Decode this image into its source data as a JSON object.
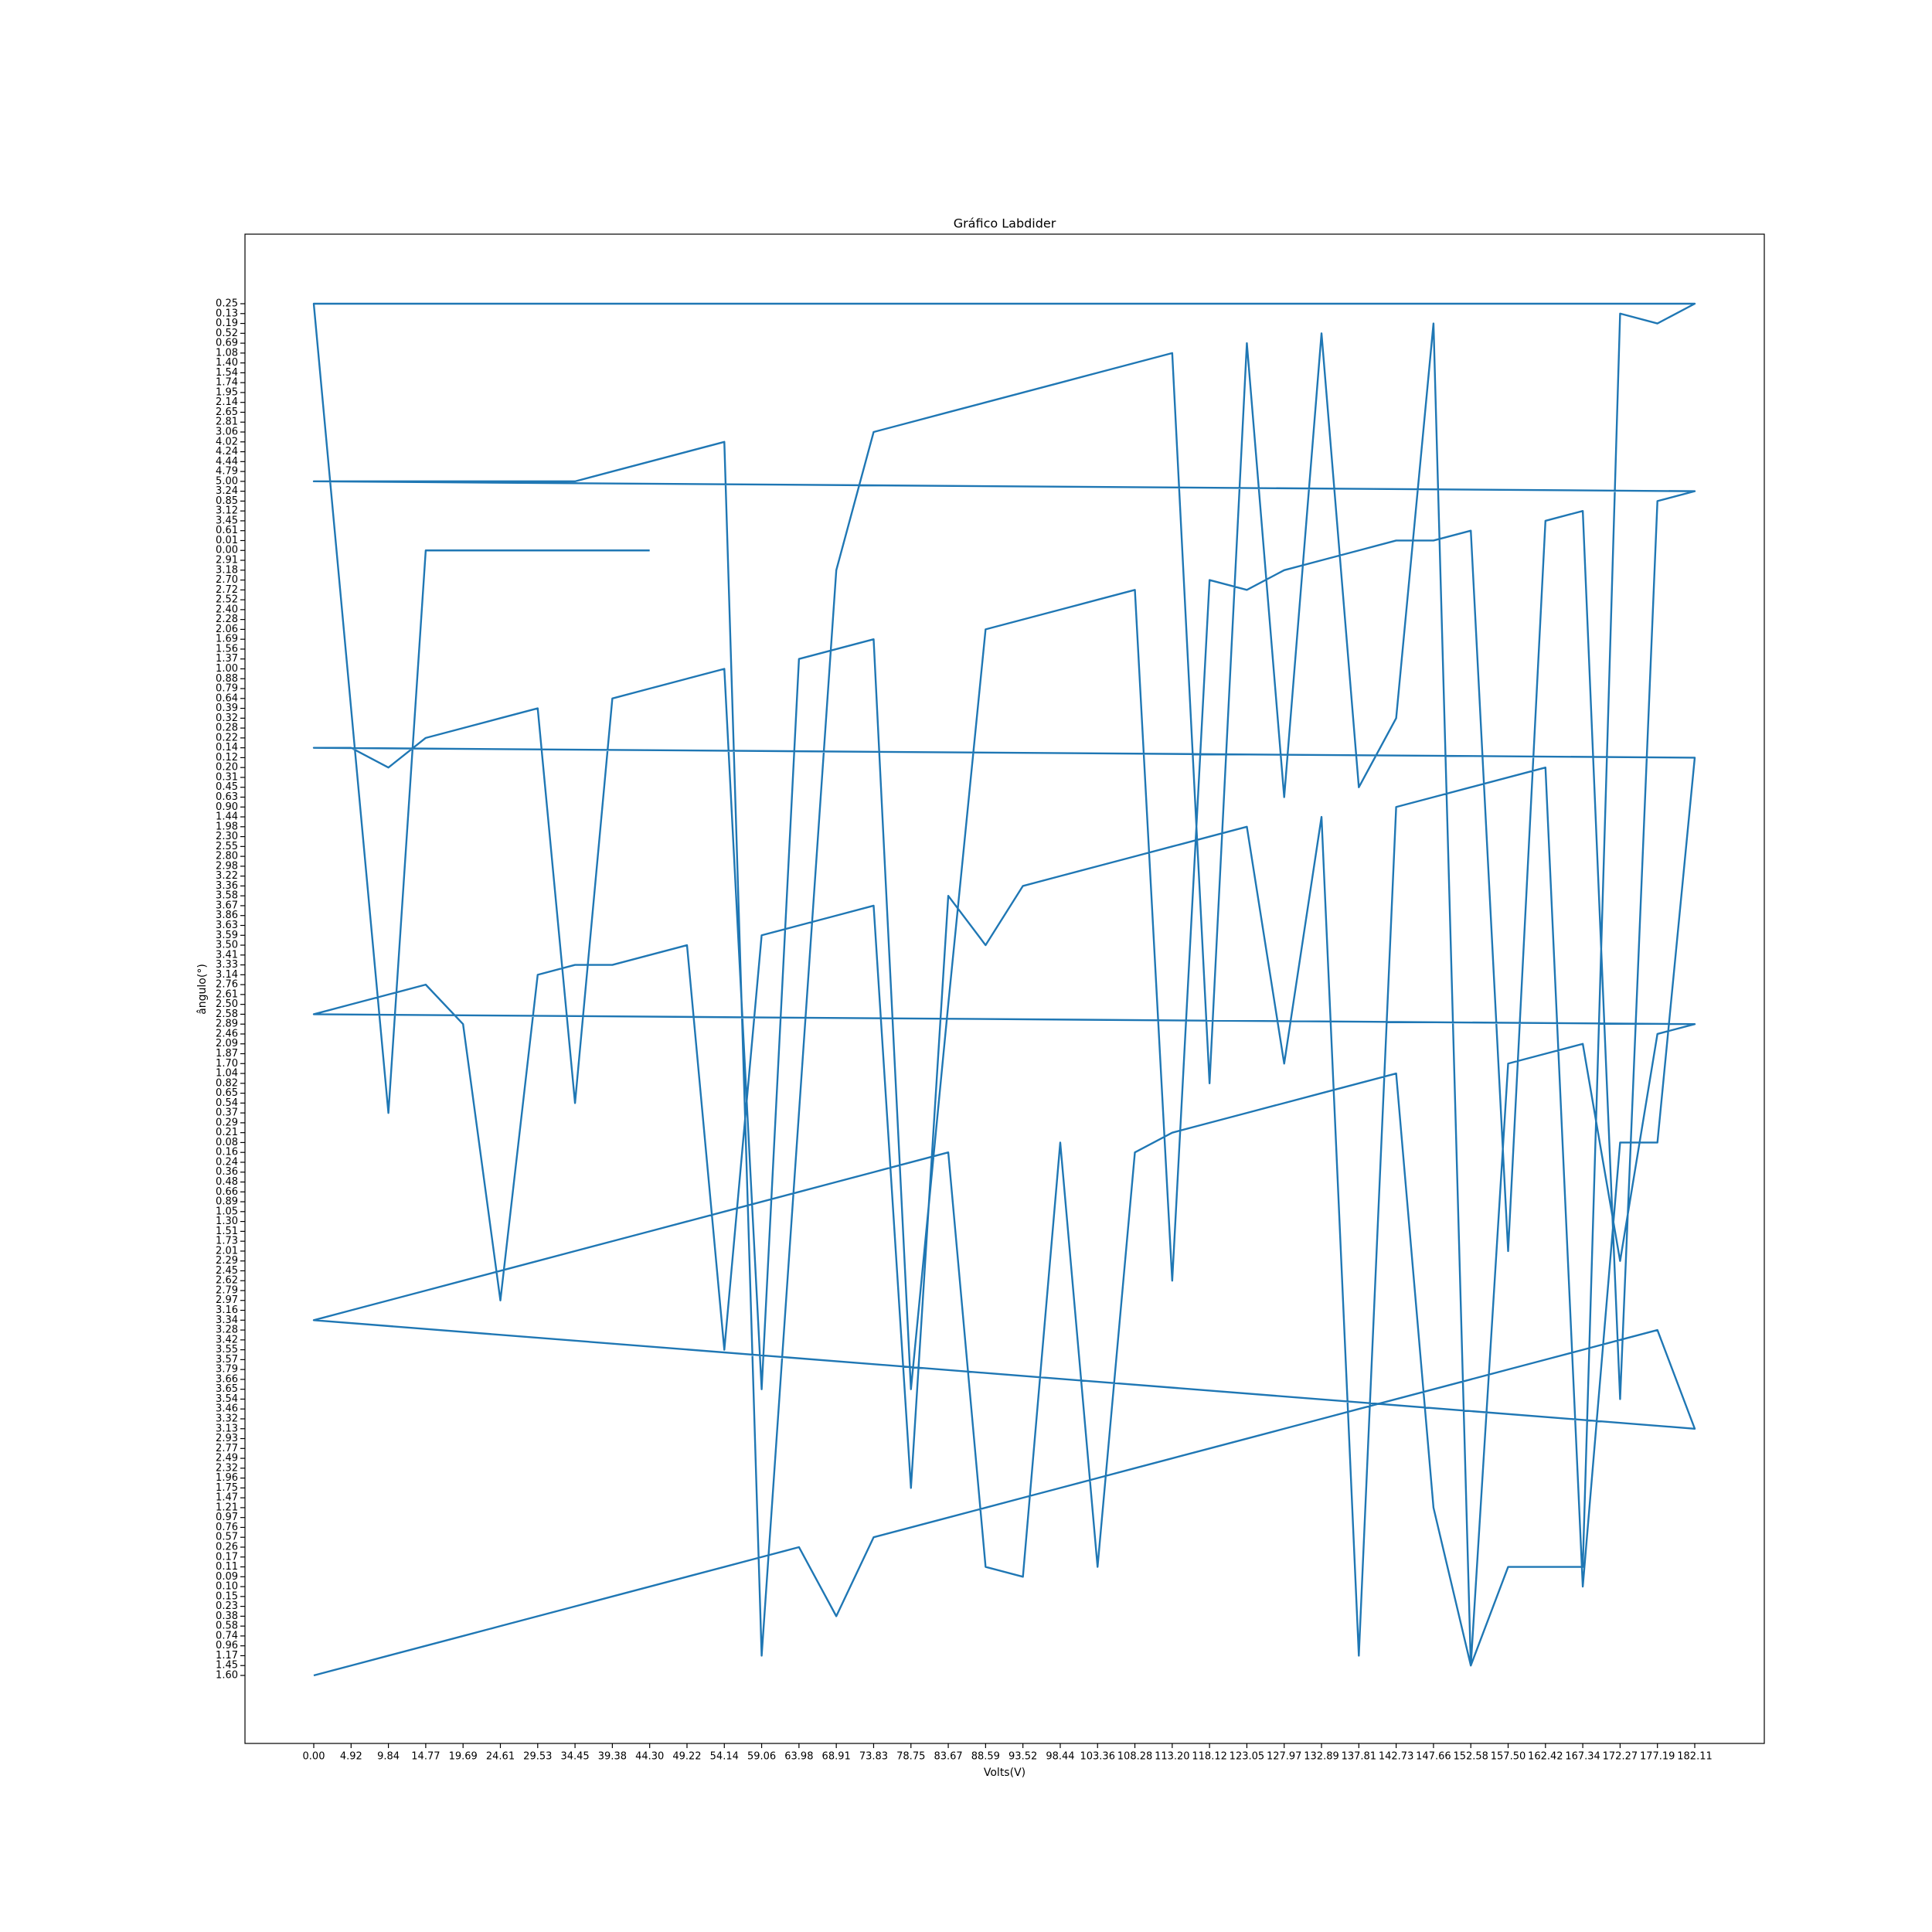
{
  "chart_data": {
    "type": "line",
    "title": "Gráfico Labdider",
    "x_label": "Volts(V)",
    "y_label": "ângulo(°)",
    "categories": [
      "0.00",
      "4.92",
      "9.84",
      "14.77",
      "19.69",
      "24.61",
      "29.53",
      "34.45",
      "39.38",
      "44.30",
      "49.22",
      "54.14",
      "59.06",
      "63.98",
      "68.91",
      "73.83",
      "78.75",
      "83.67",
      "88.59",
      "93.52",
      "98.44",
      "103.36",
      "108.28",
      "113.20",
      "118.12",
      "123.05",
      "127.97",
      "132.89",
      "137.81",
      "142.73",
      "147.66",
      "152.58",
      "157.50",
      "162.42",
      "167.34",
      "172.27",
      "177.19",
      "182.11"
    ],
    "y_categories": [
      "1.60",
      "1.45",
      "1.17",
      "0.96",
      "0.74",
      "0.58",
      "0.38",
      "0.23",
      "0.15",
      "0.10",
      "0.09",
      "0.11",
      "0.17",
      "0.26",
      "0.57",
      "0.76",
      "0.97",
      "1.21",
      "1.47",
      "1.75",
      "1.96",
      "2.32",
      "2.49",
      "2.77",
      "2.93",
      "3.13",
      "3.32",
      "3.46",
      "3.54",
      "3.65",
      "3.66",
      "3.79",
      "3.57",
      "3.55",
      "3.42",
      "3.28",
      "3.34",
      "3.16",
      "2.97",
      "2.79",
      "2.62",
      "2.45",
      "2.29",
      "2.01",
      "1.73",
      "1.51",
      "1.30",
      "1.05",
      "0.89",
      "0.66",
      "0.48",
      "0.36",
      "0.24",
      "0.16",
      "0.08",
      "0.21",
      "0.29",
      "0.37",
      "0.54",
      "0.65",
      "0.82",
      "1.04",
      "1.70",
      "1.87",
      "2.09",
      "2.46",
      "2.89",
      "2.58",
      "2.50",
      "2.61",
      "2.76",
      "3.14",
      "3.33",
      "3.41",
      "3.50",
      "3.59",
      "3.63",
      "3.86",
      "3.67",
      "3.58",
      "3.36",
      "3.22",
      "2.98",
      "2.80",
      "2.55",
      "2.30",
      "1.98",
      "1.44",
      "0.90",
      "0.63",
      "0.45",
      "0.31",
      "0.20",
      "0.12",
      "0.14",
      "0.22",
      "0.28",
      "0.32",
      "0.39",
      "0.64",
      "0.79",
      "0.88",
      "1.00",
      "1.37",
      "1.56",
      "1.69",
      "2.06",
      "2.28",
      "2.40",
      "2.52",
      "2.72",
      "2.70",
      "3.18",
      "2.91",
      "0.00",
      "0.01",
      "0.61",
      "3.45",
      "3.12",
      "0.85",
      "3.24",
      "5.00",
      "4.79",
      "4.44",
      "4.24",
      "4.02",
      "3.06",
      "2.81",
      "2.65",
      "2.14",
      "1.95",
      "1.74",
      "1.54",
      "1.40",
      "1.08",
      "0.69",
      "0.52",
      "0.19",
      "0.13",
      "0.25"
    ],
    "series": [
      {
        "color": "#1f77b4",
        "x": [
          0,
          4.92,
          9.84,
          14.77,
          19.69,
          24.61,
          29.53,
          34.45,
          39.38,
          44.3,
          49.22,
          54.14,
          59.06,
          63.98,
          68.91,
          73.83,
          78.75,
          83.67,
          88.59,
          93.52,
          98.44,
          103.36,
          108.28,
          113.2,
          118.12,
          123.05,
          127.97,
          132.89,
          137.81,
          142.73,
          147.66,
          152.58,
          157.5,
          162.42,
          167.34,
          172.27,
          177.19,
          182.11,
          0,
          4.92,
          9.84,
          14.77,
          19.69,
          24.61,
          29.53,
          34.45,
          39.38,
          44.3,
          49.22,
          54.14,
          59.06,
          63.98,
          68.91,
          73.83,
          78.75,
          83.67,
          88.59,
          93.52,
          98.44,
          103.36,
          108.28,
          113.2,
          118.12,
          123.05,
          127.97,
          132.89,
          137.81,
          142.73,
          147.66,
          152.58,
          157.5,
          162.42,
          167.34,
          172.27,
          177.19,
          182.11,
          0,
          4.92,
          9.84,
          14.77,
          19.69,
          24.61,
          29.53,
          34.45,
          39.38,
          44.3,
          49.22,
          54.14,
          59.06,
          63.98,
          68.91,
          73.83,
          78.75,
          83.67,
          88.59,
          93.52,
          98.44,
          103.36,
          108.28,
          113.2,
          118.12,
          123.05,
          127.97,
          132.89,
          137.81,
          142.73,
          147.66,
          152.58,
          157.5,
          162.42,
          167.34,
          172.27,
          177.19,
          182.11,
          0,
          4.92,
          9.84,
          14.77,
          19.69,
          24.61,
          29.53,
          34.45,
          39.38,
          44.3,
          49.22,
          54.14,
          59.06,
          63.98,
          68.91,
          73.83,
          78.75,
          83.67,
          88.59,
          93.52,
          98.44,
          103.36,
          108.28,
          113.2,
          118.12,
          123.05,
          127.97,
          132.89,
          137.81,
          142.73,
          147.66,
          152.58,
          157.5,
          162.42,
          167.34,
          172.27,
          177.19,
          182.11,
          0,
          4.92,
          9.84,
          14.77,
          19.69,
          24.61,
          29.53,
          34.45,
          39.38,
          44.3,
          49.22,
          54.14,
          59.06,
          63.98,
          68.91,
          73.83,
          78.75,
          83.67,
          88.59,
          93.52,
          98.44,
          103.36,
          108.28,
          113.2,
          118.12,
          123.05,
          127.97,
          132.89,
          137.81,
          142.73,
          147.66,
          152.58,
          157.5,
          162.42,
          167.34,
          172.27,
          177.19,
          182.11,
          0,
          4.92,
          9.84,
          14.77,
          19.69,
          24.61,
          29.53,
          34.45,
          39.38,
          44.3
        ],
        "values": [
          1.6,
          1.45,
          1.17,
          0.96,
          0.74,
          0.58,
          0.38,
          0.23,
          0.15,
          0.1,
          0.09,
          0.11,
          0.17,
          0.26,
          0.38,
          0.57,
          0.76,
          0.97,
          1.21,
          1.47,
          1.75,
          1.96,
          2.32,
          2.49,
          2.77,
          2.93,
          3.13,
          3.32,
          3.46,
          3.54,
          3.65,
          3.66,
          3.79,
          3.57,
          3.55,
          3.42,
          3.28,
          3.13,
          3.34,
          3.16,
          2.97,
          2.79,
          2.62,
          2.45,
          2.29,
          2.01,
          1.73,
          1.51,
          1.3,
          1.05,
          0.89,
          0.66,
          0.48,
          0.36,
          0.24,
          0.16,
          0.11,
          0.09,
          0.08,
          0.11,
          0.16,
          0.21,
          0.29,
          0.37,
          0.54,
          0.65,
          0.82,
          1.04,
          1.21,
          1.45,
          1.7,
          1.87,
          2.09,
          2.29,
          2.46,
          2.89,
          2.58,
          2.5,
          2.61,
          2.76,
          2.89,
          2.97,
          3.14,
          3.33,
          3.33,
          3.41,
          3.5,
          3.55,
          3.59,
          3.63,
          3.86,
          3.67,
          1.75,
          3.58,
          3.5,
          3.36,
          3.22,
          2.98,
          2.8,
          2.55,
          2.3,
          1.98,
          1.7,
          1.44,
          1.17,
          0.9,
          0.63,
          0.45,
          0.31,
          0.2,
          0.1,
          0.08,
          0.08,
          0.12,
          0.14,
          0.14,
          0.2,
          0.22,
          0.28,
          0.32,
          0.39,
          0.54,
          0.64,
          0.79,
          0.88,
          1,
          3.65,
          1.37,
          1.56,
          1.69,
          3.65,
          2.5,
          2.06,
          2.28,
          2.4,
          2.52,
          2.72,
          2.62,
          2.7,
          2.72,
          3.18,
          2.91,
          0,
          0.01,
          0.01,
          0.61,
          2.01,
          3.45,
          3.12,
          3.54,
          0.85,
          3.24,
          5,
          5,
          5,
          5,
          5,
          5,
          5,
          5,
          4.79,
          4.44,
          4.24,
          4.02,
          1.17,
          0.37,
          3.18,
          3.06,
          2.81,
          2.65,
          2.14,
          1.95,
          1.74,
          1.54,
          1.4,
          1.08,
          0.82,
          0.69,
          0.63,
          0.52,
          0.45,
          0.32,
          0.19,
          1.45,
          0.11,
          0.11,
          0.11,
          0.13,
          0.19,
          0.25,
          0.25,
          0.39,
          0.37,
          0,
          0,
          0,
          0,
          0,
          0,
          0
        ]
      }
    ]
  }
}
